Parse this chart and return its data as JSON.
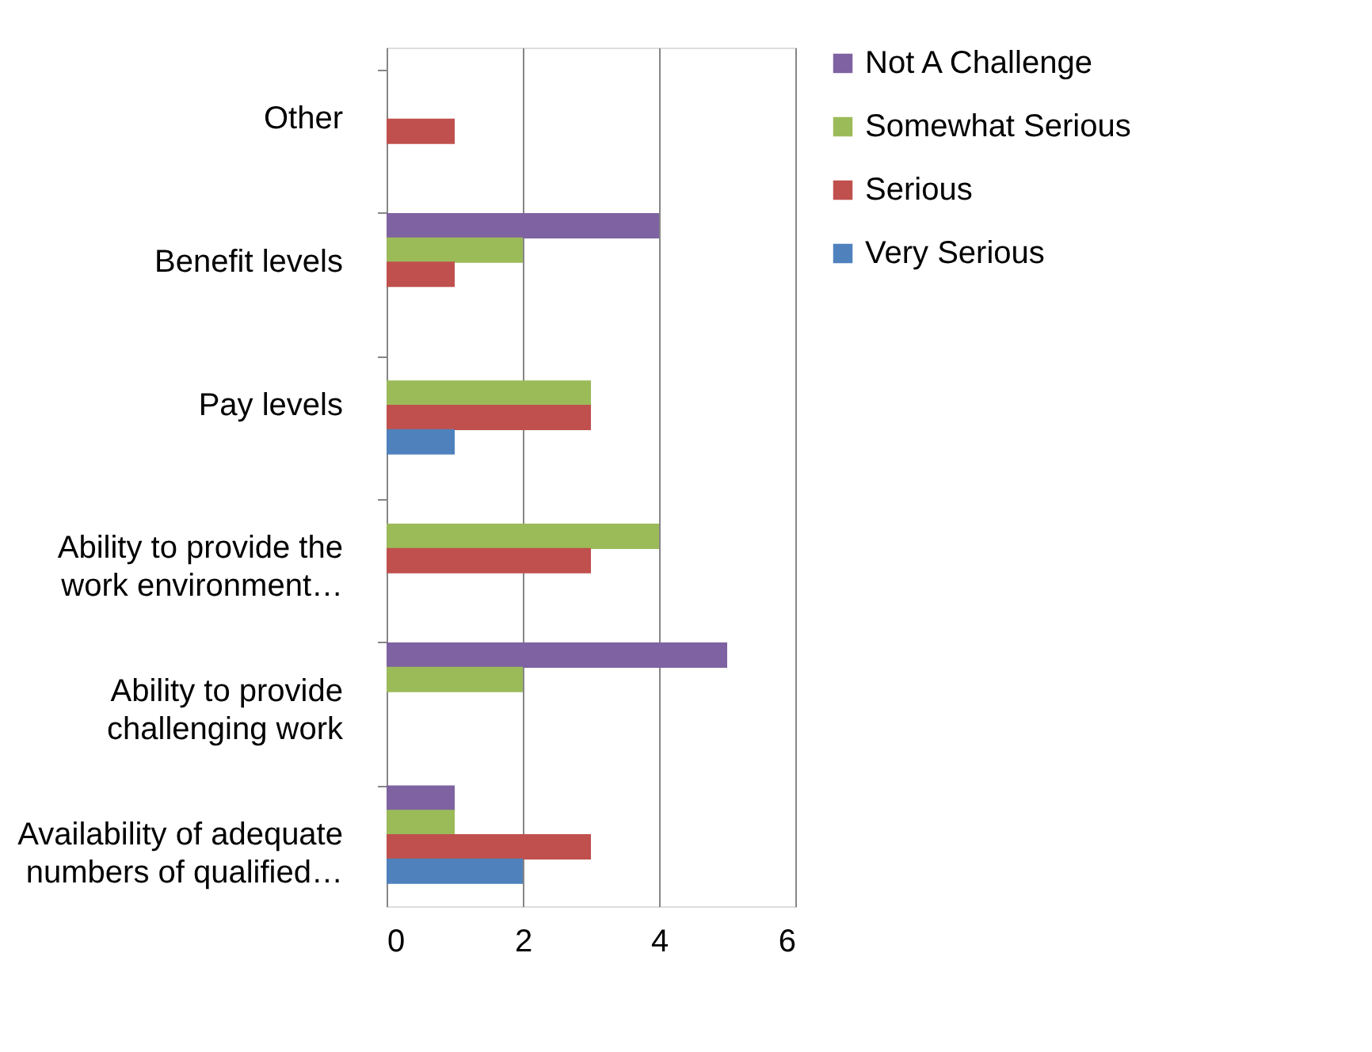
{
  "chart_data": {
    "type": "bar",
    "orientation": "horizontal",
    "categories": [
      "Other",
      "Benefit levels",
      "Pay levels",
      "Ability to provide the\nwork environment…",
      "Ability to provide\nchallenging work",
      "Availability of adequate\nnumbers of qualified…"
    ],
    "series": [
      {
        "name": "Not A Challenge",
        "color": "#7e62a1",
        "values": [
          null,
          4,
          null,
          null,
          5,
          1
        ]
      },
      {
        "name": "Somewhat Serious",
        "color": "#9bbb59",
        "values": [
          null,
          2,
          3,
          4,
          2,
          1
        ]
      },
      {
        "name": "Serious",
        "color": "#c0504d",
        "values": [
          1,
          1,
          3,
          3,
          null,
          3
        ]
      },
      {
        "name": "Very Serious",
        "color": "#4f81bd",
        "values": [
          null,
          null,
          1,
          null,
          null,
          2
        ]
      }
    ],
    "xlim": [
      0,
      6
    ],
    "xticks": [
      0,
      2,
      4,
      6
    ],
    "grid": "x",
    "legend": "right"
  }
}
